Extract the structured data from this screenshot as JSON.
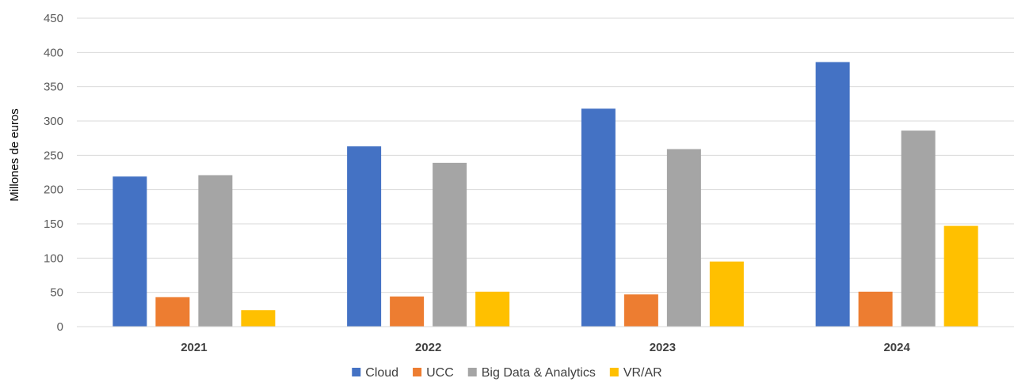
{
  "chart_data": {
    "type": "bar",
    "title": "",
    "xlabel": "",
    "ylabel": "Millones de euros",
    "ylim": [
      0,
      450
    ],
    "yticks": [
      0,
      50,
      100,
      150,
      200,
      250,
      300,
      350,
      400,
      450
    ],
    "grid": true,
    "legend_position": "bottom",
    "categories": [
      "2021",
      "2022",
      "2023",
      "2024"
    ],
    "series": [
      {
        "name": "Cloud",
        "color": "#4472C4",
        "values": [
          219,
          263,
          318,
          386
        ]
      },
      {
        "name": "UCC",
        "color": "#ED7D31",
        "values": [
          43,
          44,
          47,
          51
        ]
      },
      {
        "name": "Big Data & Analytics",
        "color": "#A5A5A5",
        "values": [
          221,
          239,
          259,
          286
        ]
      },
      {
        "name": "VR/AR",
        "color": "#FFC000",
        "values": [
          24,
          51,
          95,
          147
        ]
      }
    ]
  }
}
